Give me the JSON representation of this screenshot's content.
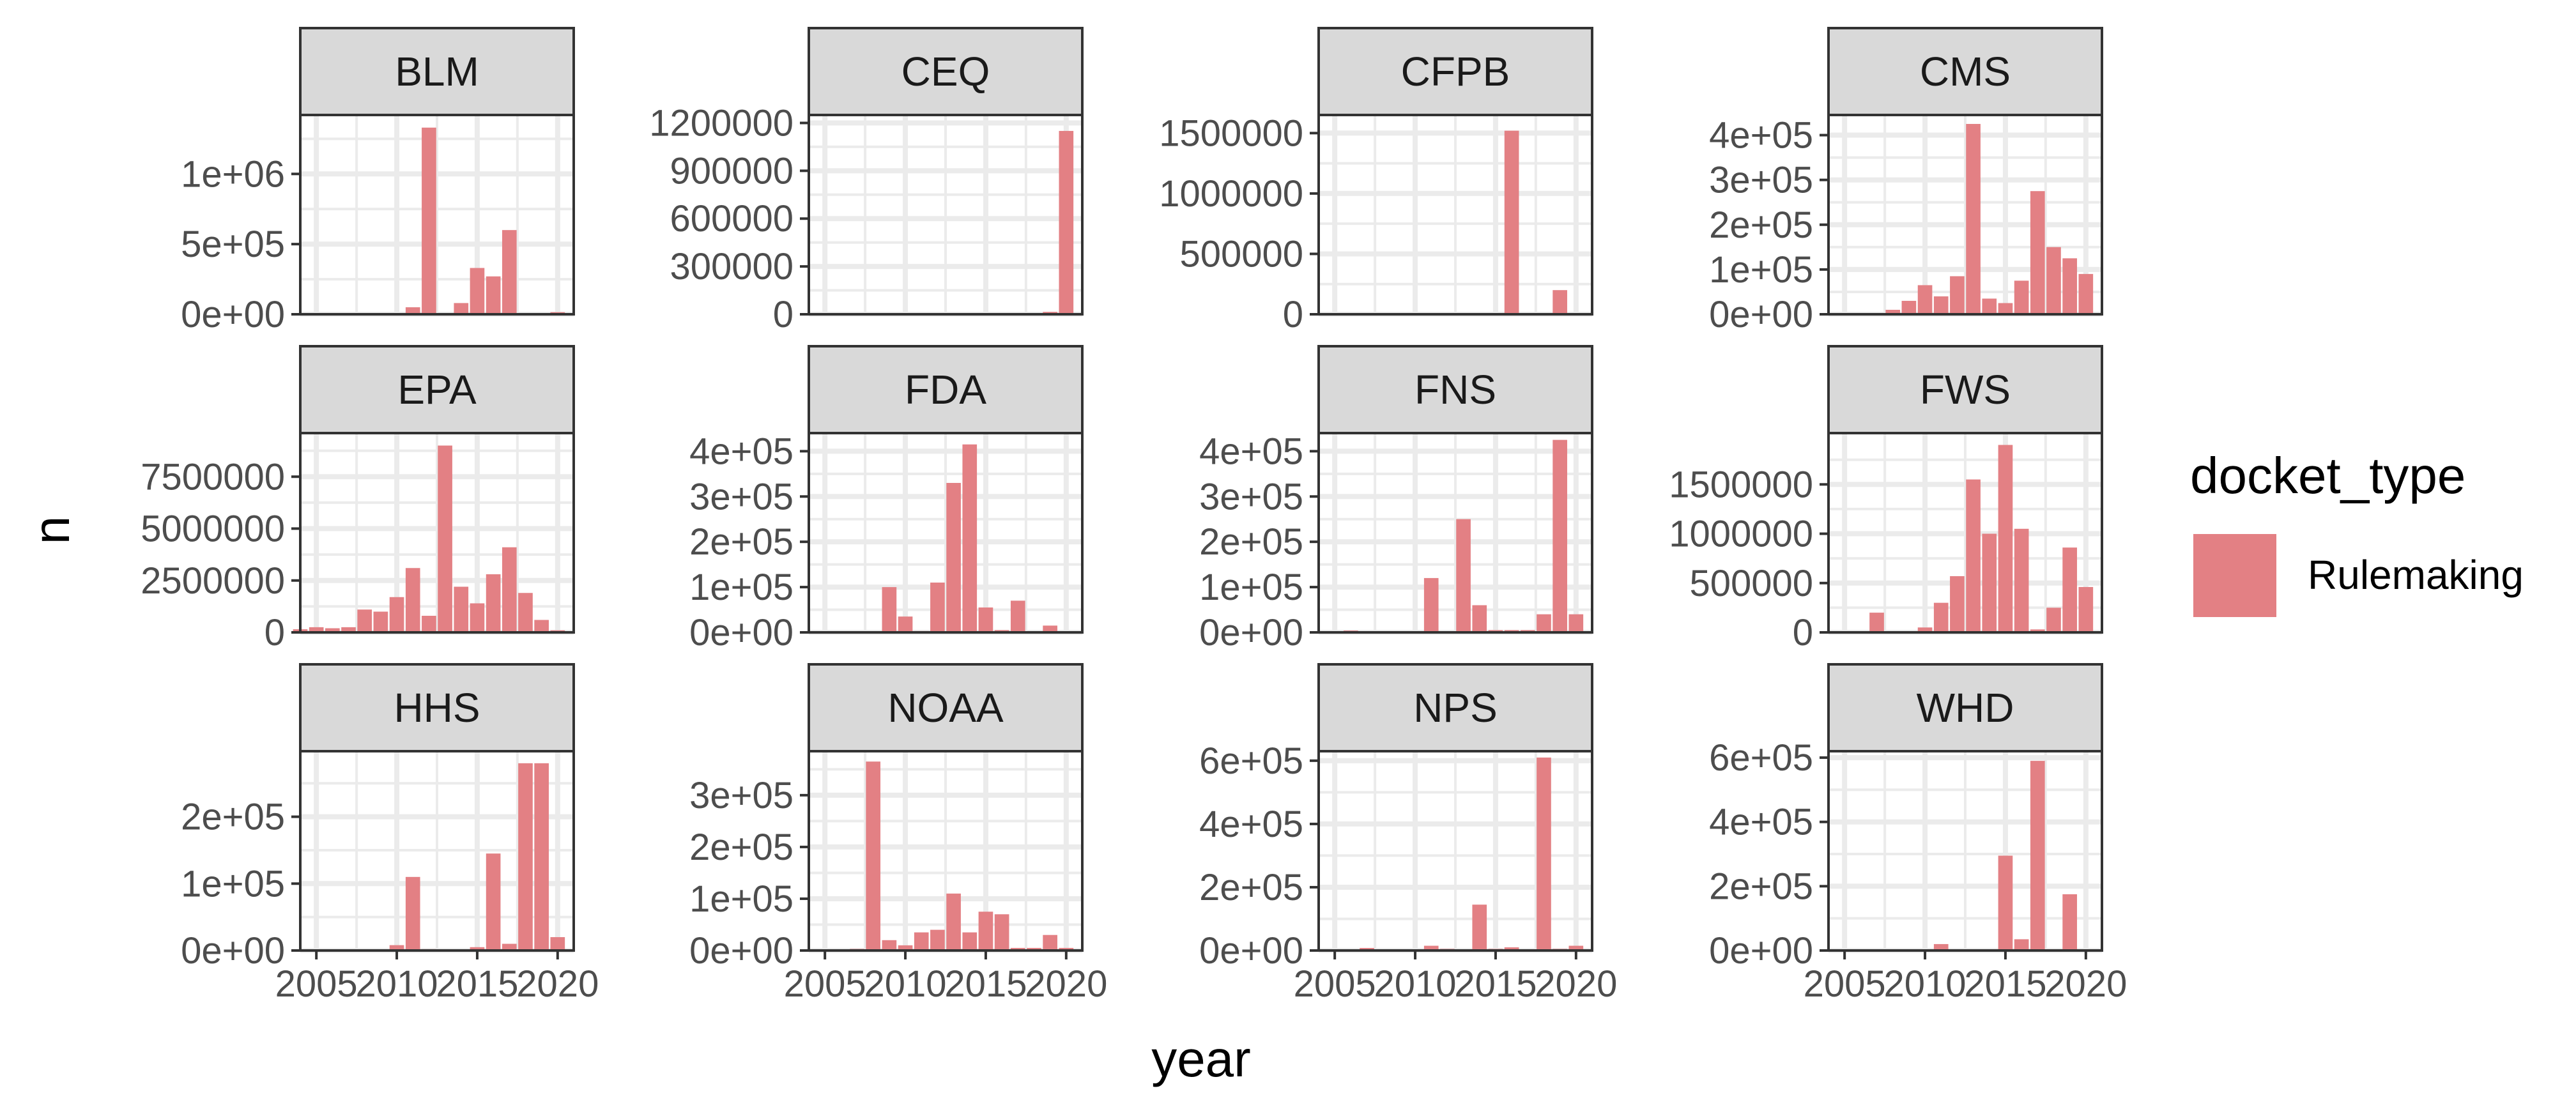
{
  "chart_data": {
    "type": "bar",
    "layout": "facet grid, 3 rows x 4 columns, free y scales, shared x scale",
    "xlabel": "year",
    "ylabel": "n",
    "x_ticks": [
      2005,
      2010,
      2015,
      2020
    ],
    "xlim": [
      2004,
      2021
    ],
    "bar_color": "#E38084",
    "grid": true,
    "legend": {
      "title": "docket_type",
      "entries": [
        "Rulemaking"
      ],
      "position": "right"
    },
    "panels": [
      {
        "title": "BLM",
        "y_ticks": [
          0,
          500000,
          1000000
        ],
        "y_tick_labels": [
          "0e+00",
          "5e+05",
          "1e+06"
        ],
        "ylim": [
          0,
          1420000
        ],
        "x": [
          2011,
          2012,
          2014,
          2015,
          2016,
          2017,
          2020
        ],
        "values": [
          50000,
          1330000,
          80000,
          330000,
          270000,
          600000,
          15000
        ]
      },
      {
        "title": "CEQ",
        "y_ticks": [
          0,
          300000,
          600000,
          900000,
          1200000
        ],
        "y_tick_labels": [
          "0",
          "300000",
          "600000",
          "900000",
          "1200000"
        ],
        "ylim": [
          0,
          1250000
        ],
        "x": [
          2019,
          2020
        ],
        "values": [
          15000,
          1150000
        ]
      },
      {
        "title": "CFPB",
        "y_ticks": [
          0,
          500000,
          1000000,
          1500000
        ],
        "y_tick_labels": [
          "0",
          "500000",
          "1000000",
          "1500000"
        ],
        "ylim": [
          0,
          1650000
        ],
        "x": [
          2011,
          2012,
          2013,
          2014,
          2015,
          2016,
          2017,
          2018,
          2019
        ],
        "values": [
          3000,
          5000,
          5000,
          8000,
          6000,
          1520000,
          1000,
          1000,
          200000
        ]
      },
      {
        "title": "CMS",
        "y_ticks": [
          0,
          100000,
          200000,
          300000,
          400000
        ],
        "y_tick_labels": [
          "0e+00",
          "1e+05",
          "2e+05",
          "3e+05",
          "4e+05"
        ],
        "ylim": [
          0,
          445000
        ],
        "x": [
          2007,
          2008,
          2009,
          2010,
          2011,
          2012,
          2013,
          2014,
          2015,
          2016,
          2017,
          2018,
          2019,
          2020
        ],
        "values": [
          2000,
          10000,
          30000,
          65000,
          40000,
          85000,
          425000,
          35000,
          25000,
          75000,
          275000,
          150000,
          125000,
          90000
        ]
      },
      {
        "title": "EPA",
        "y_ticks": [
          0,
          2500000,
          5000000,
          7500000
        ],
        "y_tick_labels": [
          "0",
          "2500000",
          "5000000",
          "7500000"
        ],
        "ylim": [
          0,
          9600000
        ],
        "x": [
          2004,
          2005,
          2006,
          2007,
          2008,
          2009,
          2010,
          2011,
          2012,
          2013,
          2014,
          2015,
          2016,
          2017,
          2018,
          2019,
          2020
        ],
        "values": [
          150000,
          250000,
          200000,
          250000,
          1100000,
          1000000,
          1700000,
          3100000,
          800000,
          9000000,
          2200000,
          1400000,
          2800000,
          4100000,
          1900000,
          600000,
          100000
        ]
      },
      {
        "title": "FDA",
        "y_ticks": [
          0,
          100000,
          200000,
          300000,
          400000
        ],
        "y_tick_labels": [
          "0e+00",
          "1e+05",
          "2e+05",
          "3e+05",
          "4e+05"
        ],
        "ylim": [
          0,
          440000
        ],
        "x": [
          2009,
          2010,
          2011,
          2012,
          2013,
          2014,
          2015,
          2016,
          2017,
          2019
        ],
        "values": [
          100000,
          35000,
          3000,
          110000,
          330000,
          415000,
          55000,
          5000,
          70000,
          15000
        ]
      },
      {
        "title": "FNS",
        "y_ticks": [
          0,
          100000,
          200000,
          300000,
          400000
        ],
        "y_tick_labels": [
          "0e+00",
          "1e+05",
          "2e+05",
          "3e+05",
          "4e+05"
        ],
        "ylim": [
          0,
          440000
        ],
        "x": [
          2005,
          2006,
          2007,
          2008,
          2009,
          2010,
          2011,
          2012,
          2013,
          2014,
          2015,
          2016,
          2017,
          2018,
          2019,
          2020
        ],
        "values": [
          2000,
          4000,
          1000,
          1000,
          1000,
          1000,
          120000,
          1000,
          250000,
          60000,
          5000,
          5000,
          5000,
          40000,
          425000,
          40000
        ]
      },
      {
        "title": "FWS",
        "y_ticks": [
          0,
          500000,
          1000000,
          1500000
        ],
        "y_tick_labels": [
          "0",
          "500000",
          "1000000",
          "1500000"
        ],
        "ylim": [
          0,
          2020000
        ],
        "x": [
          2004,
          2005,
          2006,
          2007,
          2008,
          2009,
          2010,
          2011,
          2012,
          2013,
          2014,
          2015,
          2016,
          2017,
          2018,
          2019,
          2020
        ],
        "values": [
          2000,
          2000,
          2000,
          200000,
          5000,
          2000,
          50000,
          300000,
          570000,
          1550000,
          1000000,
          1900000,
          1050000,
          30000,
          250000,
          860000,
          460000
        ]
      },
      {
        "title": "HHS",
        "y_ticks": [
          0,
          100000,
          200000
        ],
        "y_tick_labels": [
          "0e+00",
          "1e+05",
          "2e+05"
        ],
        "ylim": [
          0,
          298000
        ],
        "x": [
          2010,
          2011,
          2012,
          2013,
          2014,
          2015,
          2016,
          2017,
          2018,
          2019,
          2020
        ],
        "values": [
          8000,
          110000,
          2000,
          1000,
          1000,
          5000,
          145000,
          10000,
          280000,
          280000,
          20000
        ]
      },
      {
        "title": "NOAA",
        "y_ticks": [
          0,
          100000,
          200000,
          300000
        ],
        "y_tick_labels": [
          "0e+00",
          "1e+05",
          "2e+05",
          "3e+05"
        ],
        "ylim": [
          0,
          385000
        ],
        "x": [
          2007,
          2008,
          2009,
          2010,
          2011,
          2012,
          2013,
          2014,
          2015,
          2016,
          2017,
          2018,
          2019,
          2020
        ],
        "values": [
          3000,
          365000,
          20000,
          10000,
          35000,
          40000,
          110000,
          35000,
          75000,
          70000,
          5000,
          5000,
          30000,
          5000
        ]
      },
      {
        "title": "NPS",
        "y_ticks": [
          0,
          200000,
          400000,
          600000
        ],
        "y_tick_labels": [
          "0e+00",
          "2e+05",
          "4e+05",
          "6e+05"
        ],
        "ylim": [
          0,
          630000
        ],
        "x": [
          2004,
          2005,
          2006,
          2007,
          2008,
          2009,
          2010,
          2011,
          2012,
          2013,
          2014,
          2015,
          2016,
          2017,
          2018,
          2019,
          2020
        ],
        "values": [
          1000,
          1000,
          1000,
          8000,
          3000,
          2000,
          3000,
          15000,
          5000,
          3000,
          145000,
          5000,
          10000,
          3000,
          610000,
          5000,
          15000
        ]
      },
      {
        "title": "WHD",
        "y_ticks": [
          0,
          200000,
          400000,
          600000
        ],
        "y_tick_labels": [
          "0e+00",
          "2e+05",
          "4e+05",
          "6e+05"
        ],
        "ylim": [
          0,
          620000
        ],
        "x": [
          2011,
          2014,
          2015,
          2016,
          2017,
          2019
        ],
        "values": [
          20000,
          3000,
          295000,
          35000,
          590000,
          175000
        ]
      }
    ]
  }
}
